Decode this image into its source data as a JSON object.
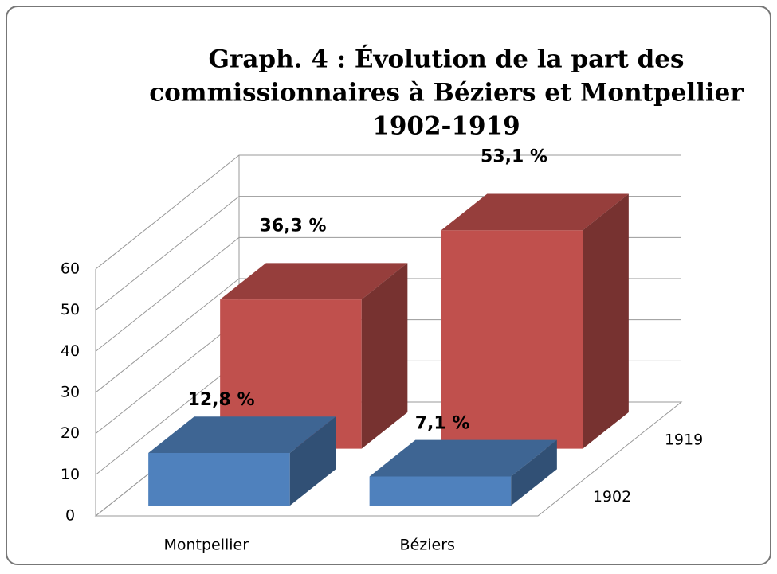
{
  "chart_data": {
    "type": "bar3d",
    "title": [
      "Graph. 4 : Évolution de la part des",
      "commissionnaires à Béziers et Montpellier",
      "1902-1919"
    ],
    "categories": [
      "Montpellier",
      "Béziers"
    ],
    "series": [
      {
        "name": "1902",
        "color": "#4f81bd",
        "values": [
          12.8,
          7.1
        ],
        "value_labels": [
          "12,8 %",
          "7,1 %"
        ]
      },
      {
        "name": "1919",
        "color": "#c0504d",
        "values": [
          36.3,
          53.1
        ],
        "value_labels": [
          "36,3 %",
          "53,1 %"
        ]
      }
    ],
    "ylim": [
      0,
      60
    ],
    "yticks": [
      0,
      10,
      20,
      30,
      40,
      50,
      60
    ],
    "grid": true
  }
}
